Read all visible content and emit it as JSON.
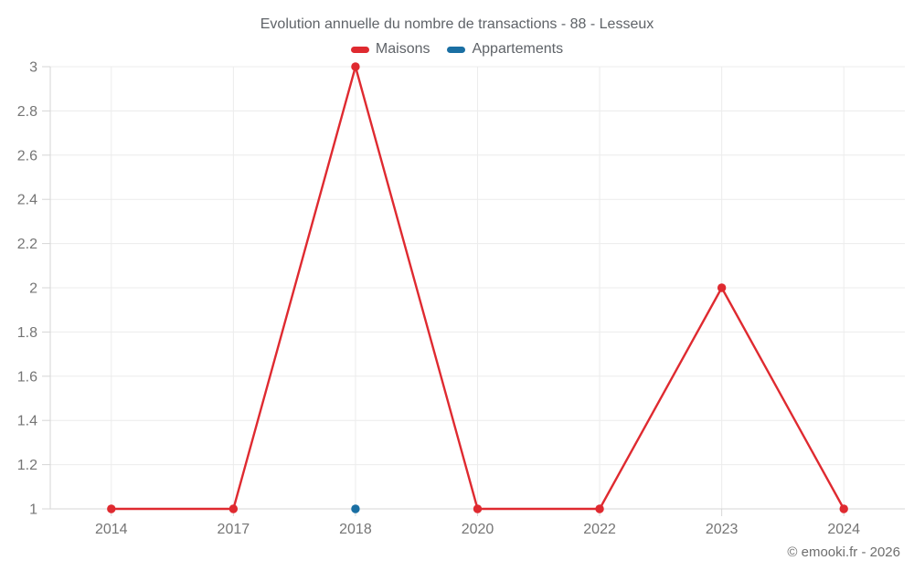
{
  "page": {
    "title": "Evolution annuelle du nombre de transactions - 88 - Lesseux",
    "footer": "© emooki.fr - 2026"
  },
  "legend": {
    "items": [
      {
        "label": "Maisons",
        "color": "#df2a30"
      },
      {
        "label": "Appartements",
        "color": "#1a6fa3"
      }
    ]
  },
  "chart_data": {
    "type": "line",
    "title": "Evolution annuelle du nombre de transactions - 88 - Lesseux",
    "categories": [
      "2014",
      "2017",
      "2018",
      "2020",
      "2022",
      "2023",
      "2024"
    ],
    "series": [
      {
        "name": "Maisons",
        "color": "#df2a30",
        "values": [
          1,
          1,
          3,
          1,
          1,
          2,
          1
        ]
      },
      {
        "name": "Appartements",
        "color": "#1a6fa3",
        "values": [
          null,
          null,
          1,
          null,
          null,
          null,
          null
        ]
      }
    ],
    "ylim": [
      1,
      3
    ],
    "yticks": [
      1,
      1.2,
      1.4,
      1.6,
      1.8,
      2,
      2.2,
      2.4,
      2.6,
      2.8,
      3
    ],
    "ytick_labels": [
      "1",
      "1.2",
      "1.4",
      "1.6",
      "1.8",
      "2",
      "2.2",
      "2.4",
      "2.6",
      "2.8",
      "3"
    ],
    "grid": true,
    "legend_position": "top",
    "annotations": [
      "© emooki.fr - 2026"
    ]
  },
  "colors": {
    "background": "#ffffff",
    "grid": "#ececec",
    "axis": "#d6d6d6",
    "tick_label": "#757575",
    "title_text": "#5f6368",
    "footer_text": "#6e6e6e"
  }
}
